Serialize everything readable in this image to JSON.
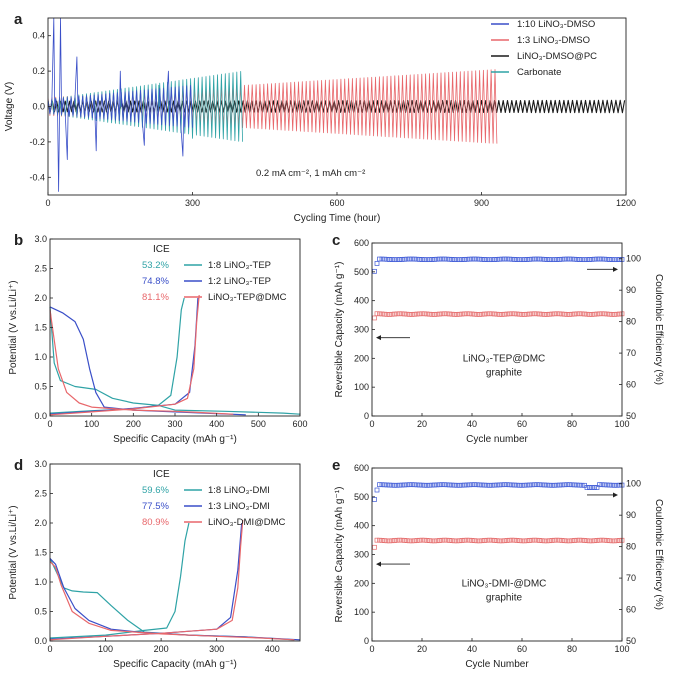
{
  "colors": {
    "blue": "#3a4fc8",
    "red": "#e8676b",
    "black": "#1a1a1a",
    "teal": "#2fa3a6",
    "teal_text": "#2fa3a6",
    "blue_text": "#3a4fc8",
    "red_text": "#e8676b",
    "ce_blue": "#3b57d6",
    "cap_red": "#e56a6a"
  },
  "panels": {
    "a": {
      "letter": "a",
      "annotation": "0.2 mA cm⁻², 1 mAh cm⁻²"
    },
    "b": {
      "letter": "b",
      "ice_title": "ICE"
    },
    "c": {
      "letter": "c",
      "annotation_line1": "LiNO₃-TEP@DMC",
      "annotation_line2": "graphite"
    },
    "d": {
      "letter": "d",
      "ice_title": "ICE"
    },
    "e": {
      "letter": "e",
      "annotation_line1": "LiNO₃-DMI-@DMC",
      "annotation_line2": "graphite"
    }
  },
  "chart_data": [
    {
      "id": "a",
      "type": "line",
      "title": "",
      "xlabel": "Cycling Time (hour)",
      "ylabel": "Voltage (V)",
      "xlim": [
        0,
        1200
      ],
      "ylim": [
        -0.5,
        0.5
      ],
      "xticks": [
        0,
        300,
        600,
        900,
        1200
      ],
      "yticks": [
        -0.4,
        -0.2,
        0.0,
        0.2,
        0.4
      ],
      "xtick_labels": [
        "0",
        "300",
        "600",
        "900",
        "1200"
      ],
      "ytick_labels": [
        "-0.4",
        "-0.2",
        "0.0",
        "0.2",
        "0.4"
      ],
      "legend_position": "top-right",
      "series": [
        {
          "name": "1:10 LiNO₃-DMSO",
          "color": "#3a4fc8",
          "t_end": 300,
          "amp_start": 0.04,
          "amp_end": 0.12,
          "spikes": [
            [
              12,
              0.5
            ],
            [
              22,
              -0.48
            ],
            [
              26,
              0.5
            ],
            [
              40,
              -0.3
            ],
            [
              60,
              0.28
            ],
            [
              100,
              -0.25
            ],
            [
              150,
              0.2
            ],
            [
              200,
              -0.22
            ],
            [
              250,
              0.2
            ],
            [
              280,
              -0.28
            ]
          ]
        },
        {
          "name": "1:3 LiNO₃-DMSO",
          "color": "#e8676b",
          "t_end": 935,
          "amp_start": 0.05,
          "amp_end": 0.21,
          "spikes": []
        },
        {
          "name": "LiNO₃-DMSO@PC",
          "color": "#1a1a1a",
          "t_end": 1200,
          "amp_start": 0.03,
          "amp_end": 0.035,
          "spikes": []
        },
        {
          "name": "Carbonate",
          "color": "#2fa3a6",
          "t_end": 405,
          "amp_start": 0.04,
          "amp_end": 0.2,
          "spikes": [
            [
              230,
              0.12
            ],
            [
              300,
              -0.18
            ]
          ]
        }
      ]
    },
    {
      "id": "b",
      "type": "line",
      "xlabel": "Specific Capacity (mAh g⁻¹)",
      "ylabel": "Potential (V vs.Li/Li⁺)",
      "xlim": [
        0,
        600
      ],
      "ylim": [
        0,
        3.0
      ],
      "xticks": [
        0,
        100,
        200,
        300,
        400,
        500,
        600
      ],
      "yticks": [
        0,
        0.5,
        1.0,
        1.5,
        2.0,
        2.5,
        3.0
      ],
      "xtick_labels": [
        "0",
        "100",
        "200",
        "300",
        "400",
        "500",
        "600"
      ],
      "ytick_labels": [
        "0.0",
        "0.5",
        "1.0",
        "1.5",
        "2.0",
        "2.5",
        "3.0"
      ],
      "legend_position": "top-right",
      "series": [
        {
          "name": "1:8 LiNO₃-TEP",
          "ice": "53.2%",
          "color": "#2fa3a6",
          "discharge": [
            [
              0,
              1.85
            ],
            [
              10,
              0.9
            ],
            [
              25,
              0.6
            ],
            [
              60,
              0.5
            ],
            [
              110,
              0.45
            ],
            [
              150,
              0.3
            ],
            [
              200,
              0.22
            ],
            [
              260,
              0.18
            ],
            [
              300,
              0.1
            ],
            [
              420,
              0.08
            ],
            [
              560,
              0.05
            ],
            [
              600,
              0.03
            ]
          ],
          "charge": [
            [
              0,
              0.05
            ],
            [
              100,
              0.09
            ],
            [
              200,
              0.12
            ],
            [
              260,
              0.18
            ],
            [
              290,
              0.35
            ],
            [
              305,
              1.0
            ],
            [
              315,
              1.8
            ],
            [
              322,
              2.0
            ]
          ]
        },
        {
          "name": "1:2 LiNO₃-TEP",
          "ice": "74.8%",
          "color": "#3a4fc8",
          "discharge": [
            [
              0,
              1.85
            ],
            [
              30,
              1.75
            ],
            [
              60,
              1.6
            ],
            [
              80,
              1.3
            ],
            [
              95,
              0.8
            ],
            [
              110,
              0.4
            ],
            [
              130,
              0.15
            ],
            [
              200,
              0.1
            ],
            [
              300,
              0.07
            ],
            [
              400,
              0.04
            ],
            [
              470,
              0.02
            ]
          ],
          "charge": [
            [
              0,
              0.03
            ],
            [
              100,
              0.08
            ],
            [
              200,
              0.13
            ],
            [
              300,
              0.2
            ],
            [
              335,
              0.4
            ],
            [
              348,
              1.2
            ],
            [
              355,
              2.0
            ]
          ]
        },
        {
          "name": "LiNO₃-TEP@DMC",
          "ice": "81.1%",
          "color": "#e8676b",
          "discharge": [
            [
              0,
              1.8
            ],
            [
              8,
              1.4
            ],
            [
              20,
              0.8
            ],
            [
              40,
              0.4
            ],
            [
              70,
              0.22
            ],
            [
              100,
              0.15
            ],
            [
              200,
              0.1
            ],
            [
              300,
              0.08
            ],
            [
              360,
              0.06
            ],
            [
              440,
              0.03
            ]
          ],
          "charge": [
            [
              0,
              0.02
            ],
            [
              100,
              0.07
            ],
            [
              200,
              0.12
            ],
            [
              300,
              0.2
            ],
            [
              330,
              0.3
            ],
            [
              345,
              0.8
            ],
            [
              352,
              1.6
            ],
            [
              358,
              2.05
            ]
          ]
        }
      ]
    },
    {
      "id": "c",
      "type": "scatter",
      "xlabel": "Cycle number",
      "ylabel": "Reversible Capacity (mAh g⁻¹)",
      "y2label": "Coulombic Efficiency (%)",
      "xlim": [
        0,
        100
      ],
      "ylim": [
        0,
        600
      ],
      "y2lim": [
        50,
        105
      ],
      "xticks": [
        0,
        20,
        40,
        60,
        80,
        100
      ],
      "yticks": [
        0,
        100,
        200,
        300,
        400,
        500,
        600
      ],
      "y2ticks": [
        50,
        60,
        70,
        80,
        90,
        100
      ],
      "xtick_labels": [
        "0",
        "20",
        "40",
        "60",
        "80",
        "100"
      ],
      "ytick_labels": [
        "0",
        "100",
        "200",
        "300",
        "400",
        "500",
        "600"
      ],
      "y2tick_labels": [
        "50",
        "60",
        "70",
        "80",
        "90",
        "100"
      ],
      "series": [
        {
          "name": "Reversible Capacity",
          "axis": "left",
          "color": "#e56a6a",
          "first": 340,
          "steady": 355
        },
        {
          "name": "Coulombic Efficiency",
          "axis": "right",
          "color": "#3b57d6",
          "first": 96,
          "second": 98.5,
          "steady": 99.8
        }
      ]
    },
    {
      "id": "d",
      "type": "line",
      "xlabel": "Specific Capacity (mAh g⁻¹)",
      "ylabel": "Potential (V vs.Li/Li⁺)",
      "xlim": [
        0,
        450
      ],
      "ylim": [
        0,
        3.0
      ],
      "xticks": [
        0,
        100,
        200,
        300,
        400
      ],
      "yticks": [
        0,
        0.5,
        1.0,
        1.5,
        2.0,
        2.5,
        3.0
      ],
      "xtick_labels": [
        "0",
        "100",
        "200",
        "300",
        "400"
      ],
      "ytick_labels": [
        "0.0",
        "0.5",
        "1.0",
        "1.5",
        "2.0",
        "2.5",
        "3.0"
      ],
      "legend_position": "top-right",
      "series": [
        {
          "name": "1:8 LiNO₃-DMI",
          "ice": "59.6%",
          "color": "#2fa3a6",
          "discharge": [
            [
              0,
              1.4
            ],
            [
              10,
              1.2
            ],
            [
              25,
              0.9
            ],
            [
              40,
              0.85
            ],
            [
              60,
              0.83
            ],
            [
              85,
              0.82
            ],
            [
              110,
              0.6
            ],
            [
              140,
              0.35
            ],
            [
              170,
              0.15
            ],
            [
              250,
              0.1
            ],
            [
              350,
              0.07
            ],
            [
              440,
              0.02
            ]
          ],
          "charge": [
            [
              0,
              0.05
            ],
            [
              100,
              0.1
            ],
            [
              170,
              0.18
            ],
            [
              210,
              0.22
            ],
            [
              225,
              0.5
            ],
            [
              235,
              1.1
            ],
            [
              243,
              1.7
            ],
            [
              250,
              2.0
            ]
          ]
        },
        {
          "name": "1:3 LiNO₃-DMI",
          "ice": "77.5%",
          "color": "#3a4fc8",
          "discharge": [
            [
              0,
              1.4
            ],
            [
              10,
              1.3
            ],
            [
              25,
              0.9
            ],
            [
              45,
              0.55
            ],
            [
              70,
              0.35
            ],
            [
              110,
              0.2
            ],
            [
              160,
              0.15
            ],
            [
              250,
              0.1
            ],
            [
              350,
              0.07
            ],
            [
              450,
              0.02
            ]
          ],
          "charge": [
            [
              0,
              0.03
            ],
            [
              100,
              0.08
            ],
            [
              200,
              0.13
            ],
            [
              300,
              0.2
            ],
            [
              325,
              0.4
            ],
            [
              338,
              1.2
            ],
            [
              345,
              2.0
            ]
          ]
        },
        {
          "name": "LiNO₃-DMI@DMC",
          "ice": "80.9%",
          "color": "#e8676b",
          "discharge": [
            [
              0,
              1.35
            ],
            [
              10,
              1.25
            ],
            [
              20,
              0.95
            ],
            [
              40,
              0.5
            ],
            [
              70,
              0.3
            ],
            [
              110,
              0.18
            ],
            [
              200,
              0.12
            ],
            [
              300,
              0.08
            ],
            [
              380,
              0.05
            ],
            [
              440,
              0.02
            ]
          ],
          "charge": [
            [
              0,
              0.02
            ],
            [
              100,
              0.08
            ],
            [
              200,
              0.13
            ],
            [
              300,
              0.2
            ],
            [
              328,
              0.35
            ],
            [
              338,
              0.9
            ],
            [
              343,
              1.6
            ],
            [
              347,
              2.05
            ]
          ]
        }
      ]
    },
    {
      "id": "e",
      "type": "scatter",
      "xlabel": "Cycle Number",
      "ylabel": "Reversible Capacity (mAh g⁻¹)",
      "y2label": "Coulombic Efficiency (%)",
      "xlim": [
        0,
        100
      ],
      "ylim": [
        0,
        600
      ],
      "y2lim": [
        50,
        105
      ],
      "xticks": [
        0,
        20,
        40,
        60,
        80,
        100
      ],
      "yticks": [
        0,
        100,
        200,
        300,
        400,
        500,
        600
      ],
      "y2ticks": [
        50,
        60,
        70,
        80,
        90,
        100
      ],
      "xtick_labels": [
        "0",
        "20",
        "40",
        "60",
        "80",
        "100"
      ],
      "ytick_labels": [
        "0",
        "100",
        "200",
        "300",
        "400",
        "500",
        "600"
      ],
      "y2tick_labels": [
        "50",
        "60",
        "70",
        "80",
        "90",
        "100"
      ],
      "series": [
        {
          "name": "Reversible Capacity",
          "axis": "left",
          "color": "#e56a6a",
          "first": 325,
          "steady": 350
        },
        {
          "name": "Coulombic Efficiency",
          "axis": "right",
          "color": "#3b57d6",
          "first": 95,
          "second": 98,
          "steady": 99.6
        }
      ]
    }
  ]
}
